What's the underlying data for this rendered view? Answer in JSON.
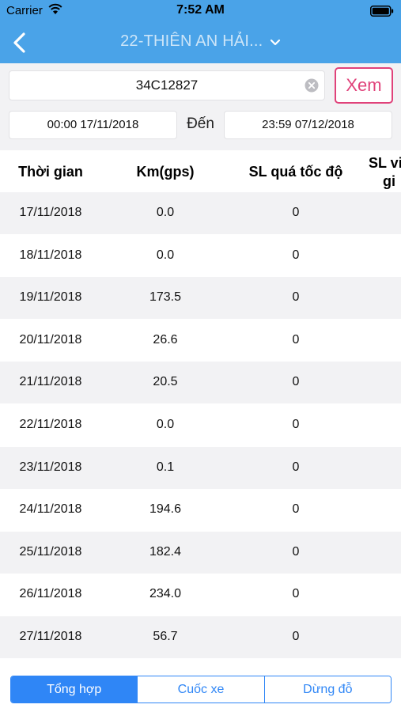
{
  "status_bar": {
    "carrier": "Carrier",
    "time": "7:52 AM"
  },
  "nav": {
    "title": "22-THIÊN AN HẢI..."
  },
  "form": {
    "plate_value": "34C12827",
    "view_label": "Xem",
    "date_from": "00:00 17/11/2018",
    "to_label": "Đến",
    "date_to": "23:59 07/12/2018"
  },
  "table": {
    "headers": {
      "time": "Thời gian",
      "km": "Km(gps)",
      "overspeed": "SL quá tốc độ",
      "extra_line1": "SL vi",
      "extra_line2": "gi"
    },
    "rows": [
      {
        "date": "17/11/2018",
        "km": "0.0",
        "overspeed": "0"
      },
      {
        "date": "18/11/2018",
        "km": "0.0",
        "overspeed": "0"
      },
      {
        "date": "19/11/2018",
        "km": "173.5",
        "overspeed": "0"
      },
      {
        "date": "20/11/2018",
        "km": "26.6",
        "overspeed": "0"
      },
      {
        "date": "21/11/2018",
        "km": "20.5",
        "overspeed": "0"
      },
      {
        "date": "22/11/2018",
        "km": "0.0",
        "overspeed": "0"
      },
      {
        "date": "23/11/2018",
        "km": "0.1",
        "overspeed": "0"
      },
      {
        "date": "24/11/2018",
        "km": "194.6",
        "overspeed": "0"
      },
      {
        "date": "25/11/2018",
        "km": "182.4",
        "overspeed": "0"
      },
      {
        "date": "26/11/2018",
        "km": "234.0",
        "overspeed": "0"
      },
      {
        "date": "27/11/2018",
        "km": "56.7",
        "overspeed": "0"
      }
    ]
  },
  "tabs": [
    {
      "label": "Tổng hợp",
      "active": true
    },
    {
      "label": "Cuốc xe",
      "active": false
    },
    {
      "label": "Dừng đỗ",
      "active": false
    }
  ],
  "colors": {
    "nav_bg": "#4aa3e8",
    "accent_pink": "#e0427a",
    "segment_blue": "#2f86f6",
    "row_alt": "#f2f2f4"
  },
  "icons": {
    "back": "chevron-left-icon",
    "title_dropdown": "chevron-down-icon",
    "clear": "clear-icon",
    "wifi": "wifi-icon",
    "battery": "battery-icon"
  }
}
